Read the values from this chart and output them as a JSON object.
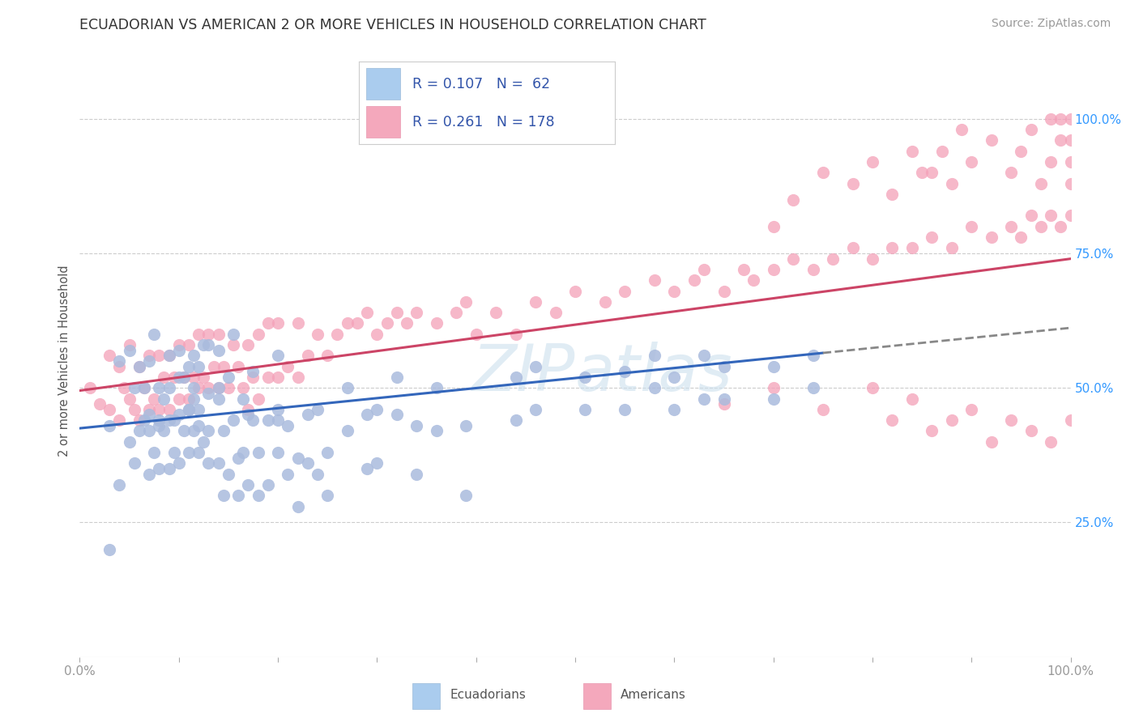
{
  "title": "ECUADORIAN VS AMERICAN 2 OR MORE VEHICLES IN HOUSEHOLD CORRELATION CHART",
  "source": "Source: ZipAtlas.com",
  "ylabel": "2 or more Vehicles in Household",
  "xlim": [
    0.0,
    1.0
  ],
  "ylim": [
    0.0,
    1.1
  ],
  "x_tick_labels": [
    "0.0%",
    "100.0%"
  ],
  "y_tick_labels": [
    "25.0%",
    "50.0%",
    "75.0%",
    "100.0%"
  ],
  "y_tick_positions": [
    0.25,
    0.5,
    0.75,
    1.0
  ],
  "legend_r1": "R = 0.107",
  "legend_n1": "N =  62",
  "legend_r2": "R = 0.261",
  "legend_n2": "N = 178",
  "ecuador_dot_color": "#aabbdd",
  "american_dot_color": "#f4a0b8",
  "ecuador_line_color": "#3366bb",
  "american_line_color": "#cc4466",
  "ecuador_legend_color": "#aaccee",
  "american_legend_color": "#f4a0b8",
  "background_color": "#ffffff",
  "grid_color": "#cccccc",
  "title_color": "#333333",
  "axis_tick_color_x": "#999999",
  "axis_tick_color_y": "#3399ff",
  "ylabel_color": "#555555",
  "legend_text_color": "#3355aa",
  "source_color": "#999999",
  "watermark_color": "#cce0ee",
  "ec_x": [
    0.03,
    0.04,
    0.05,
    0.055,
    0.06,
    0.065,
    0.07,
    0.07,
    0.075,
    0.08,
    0.08,
    0.085,
    0.09,
    0.09,
    0.095,
    0.1,
    0.1,
    0.105,
    0.11,
    0.11,
    0.115,
    0.115,
    0.12,
    0.12,
    0.125,
    0.13,
    0.13,
    0.14,
    0.14,
    0.145,
    0.15,
    0.155,
    0.16,
    0.165,
    0.17,
    0.175,
    0.18,
    0.19,
    0.2,
    0.2,
    0.21,
    0.22,
    0.23,
    0.24,
    0.25,
    0.27,
    0.29,
    0.3,
    0.32,
    0.34,
    0.36,
    0.39,
    0.44,
    0.46,
    0.51,
    0.55,
    0.58,
    0.6,
    0.63,
    0.65,
    0.7,
    0.74
  ],
  "ec_y": [
    0.43,
    0.55,
    0.57,
    0.5,
    0.54,
    0.5,
    0.45,
    0.55,
    0.6,
    0.43,
    0.5,
    0.42,
    0.5,
    0.56,
    0.44,
    0.52,
    0.57,
    0.52,
    0.46,
    0.54,
    0.48,
    0.56,
    0.43,
    0.54,
    0.58,
    0.49,
    0.58,
    0.5,
    0.57,
    0.42,
    0.52,
    0.6,
    0.37,
    0.48,
    0.45,
    0.53,
    0.38,
    0.44,
    0.46,
    0.56,
    0.43,
    0.37,
    0.45,
    0.46,
    0.38,
    0.5,
    0.45,
    0.46,
    0.52,
    0.43,
    0.5,
    0.43,
    0.52,
    0.54,
    0.52,
    0.53,
    0.56,
    0.52,
    0.56,
    0.54,
    0.54,
    0.56
  ],
  "ec_y_low": [
    0.2,
    0.32,
    0.4,
    0.36,
    0.42,
    0.44,
    0.34,
    0.42,
    0.38,
    0.35,
    0.44,
    0.48,
    0.35,
    0.44,
    0.38,
    0.36,
    0.45,
    0.42,
    0.38,
    0.46,
    0.42,
    0.5,
    0.38,
    0.46,
    0.4,
    0.36,
    0.42,
    0.36,
    0.48,
    0.3,
    0.34,
    0.44,
    0.3,
    0.38,
    0.32,
    0.44,
    0.3,
    0.32,
    0.38,
    0.44,
    0.34,
    0.28,
    0.36,
    0.34,
    0.3,
    0.42,
    0.35,
    0.36,
    0.45,
    0.34,
    0.42,
    0.3,
    0.44,
    0.46,
    0.46,
    0.46,
    0.5,
    0.46,
    0.48,
    0.48,
    0.48,
    0.5
  ],
  "am_x": [
    0.01,
    0.02,
    0.03,
    0.03,
    0.04,
    0.04,
    0.045,
    0.05,
    0.05,
    0.055,
    0.06,
    0.06,
    0.065,
    0.07,
    0.07,
    0.075,
    0.08,
    0.08,
    0.085,
    0.09,
    0.09,
    0.095,
    0.1,
    0.1,
    0.105,
    0.11,
    0.11,
    0.115,
    0.12,
    0.12,
    0.125,
    0.13,
    0.13,
    0.135,
    0.14,
    0.14,
    0.145,
    0.15,
    0.155,
    0.16,
    0.165,
    0.17,
    0.17,
    0.175,
    0.18,
    0.18,
    0.19,
    0.19,
    0.2,
    0.2,
    0.21,
    0.22,
    0.22,
    0.23,
    0.24,
    0.25,
    0.26,
    0.27,
    0.28,
    0.29,
    0.3,
    0.31,
    0.32,
    0.33,
    0.34,
    0.36,
    0.38,
    0.39,
    0.4,
    0.42,
    0.44,
    0.46,
    0.48,
    0.5,
    0.53,
    0.55,
    0.58,
    0.6,
    0.62,
    0.63,
    0.65,
    0.67,
    0.68,
    0.7,
    0.72,
    0.74,
    0.76,
    0.78,
    0.8,
    0.82,
    0.84,
    0.86,
    0.88,
    0.9,
    0.92,
    0.94,
    0.95,
    0.96,
    0.97,
    0.98,
    0.99,
    1.0
  ],
  "am_y": [
    0.5,
    0.47,
    0.46,
    0.56,
    0.44,
    0.54,
    0.5,
    0.48,
    0.58,
    0.46,
    0.44,
    0.54,
    0.5,
    0.46,
    0.56,
    0.48,
    0.46,
    0.56,
    0.52,
    0.46,
    0.56,
    0.52,
    0.48,
    0.58,
    0.52,
    0.48,
    0.58,
    0.52,
    0.5,
    0.6,
    0.52,
    0.5,
    0.6,
    0.54,
    0.5,
    0.6,
    0.54,
    0.5,
    0.58,
    0.54,
    0.5,
    0.46,
    0.58,
    0.52,
    0.48,
    0.6,
    0.52,
    0.62,
    0.52,
    0.62,
    0.54,
    0.52,
    0.62,
    0.56,
    0.6,
    0.56,
    0.6,
    0.62,
    0.62,
    0.64,
    0.6,
    0.62,
    0.64,
    0.62,
    0.64,
    0.62,
    0.64,
    0.66,
    0.6,
    0.64,
    0.6,
    0.66,
    0.64,
    0.68,
    0.66,
    0.68,
    0.7,
    0.68,
    0.7,
    0.72,
    0.68,
    0.72,
    0.7,
    0.72,
    0.74,
    0.72,
    0.74,
    0.76,
    0.74,
    0.76,
    0.76,
    0.78,
    0.76,
    0.8,
    0.78,
    0.8,
    0.78,
    0.82,
    0.8,
    0.82,
    0.8,
    0.82
  ],
  "am_y_extra_high": [
    0.8,
    0.85,
    0.9,
    0.88,
    0.92,
    0.86,
    0.94,
    0.9,
    0.88,
    0.92,
    0.96,
    0.9,
    0.94,
    0.98,
    0.88,
    1.0,
    0.92,
    0.96,
    1.0,
    0.88,
    0.92,
    0.96,
    1.0,
    0.9,
    0.94,
    0.98
  ],
  "am_x_extra_high": [
    0.7,
    0.72,
    0.75,
    0.78,
    0.8,
    0.82,
    0.84,
    0.86,
    0.88,
    0.9,
    0.92,
    0.94,
    0.95,
    0.96,
    0.97,
    0.98,
    0.98,
    0.99,
    0.99,
    1.0,
    1.0,
    1.0,
    1.0,
    0.85,
    0.87,
    0.89
  ],
  "am_low_x": [
    0.65,
    0.7,
    0.75,
    0.8,
    0.82,
    0.84,
    0.86,
    0.88,
    0.9,
    0.92,
    0.94,
    0.96,
    0.98,
    1.0
  ],
  "am_low_y": [
    0.47,
    0.5,
    0.46,
    0.5,
    0.44,
    0.48,
    0.42,
    0.44,
    0.46,
    0.4,
    0.44,
    0.42,
    0.4,
    0.44
  ]
}
